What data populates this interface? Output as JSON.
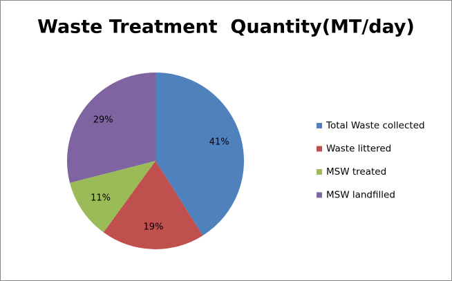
{
  "chart_data": {
    "type": "pie",
    "title": "Waste Treatment  Quantity(MT/day)",
    "categories": [
      "Total Waste collected",
      "Waste littered",
      "MSW treated",
      "MSW landfilled"
    ],
    "values": [
      41,
      19,
      11,
      29
    ],
    "value_labels": [
      "41%",
      "19%",
      "11%",
      "29%"
    ],
    "colors": [
      "#4f81bd",
      "#c0504d",
      "#9bbb59",
      "#8064a2"
    ],
    "legend": "right"
  }
}
